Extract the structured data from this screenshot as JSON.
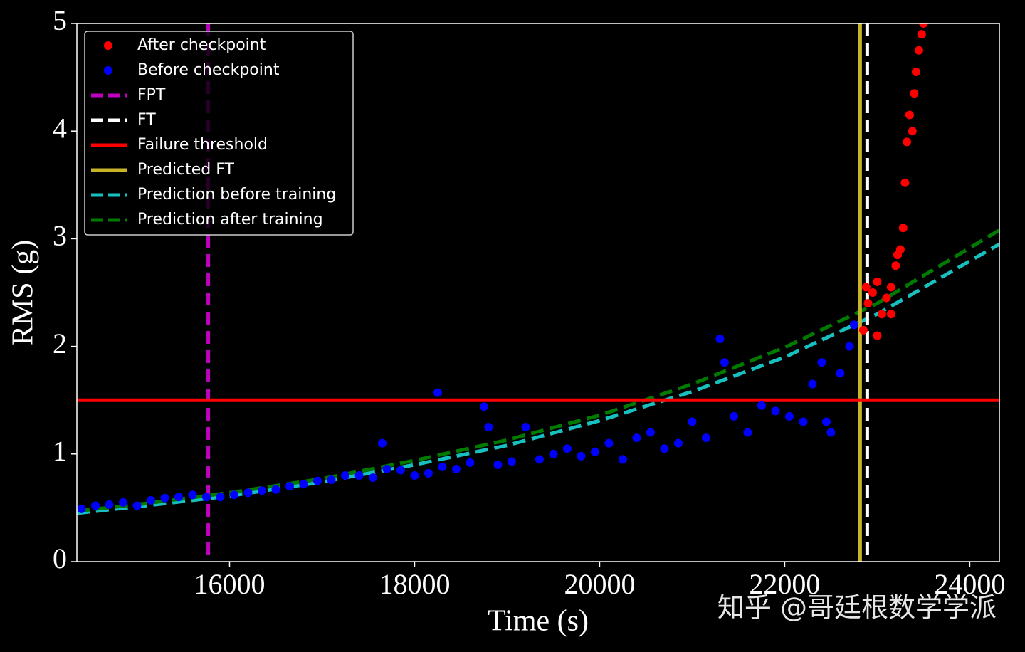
{
  "chart_data": {
    "type": "scatter",
    "xlabel": "Time (s)",
    "ylabel": "RMS (g)",
    "watermark": "知乎 @哥廷根数学学派",
    "xlim": [
      14350,
      24320
    ],
    "ylim": [
      0,
      5
    ],
    "xticks": [
      16000,
      18000,
      20000,
      22000,
      24000
    ],
    "yticks": [
      0,
      1,
      2,
      3,
      4,
      5
    ],
    "legend": "upper left",
    "series": [
      {
        "name": "After checkpoint",
        "kind": "scatter",
        "color": "#ff0000",
        "x": [
          22850,
          22880,
          22900,
          22950,
          23000,
          23050,
          23100,
          23150,
          23200,
          23220,
          23250,
          23280,
          23300,
          23320,
          23350,
          23380,
          23400,
          23420,
          23450,
          23480,
          23500,
          23000,
          23150
        ],
        "values": [
          2.15,
          2.55,
          2.4,
          2.5,
          2.6,
          2.3,
          2.45,
          2.55,
          2.75,
          2.85,
          2.9,
          3.1,
          3.52,
          3.9,
          4.15,
          4.0,
          4.35,
          4.55,
          4.75,
          4.9,
          5.0,
          2.1,
          2.3
        ]
      },
      {
        "name": "Before checkpoint",
        "kind": "scatter",
        "color": "#0000ff",
        "x": [
          14400,
          14550,
          14700,
          14850,
          15000,
          15150,
          15300,
          15450,
          15600,
          15750,
          15900,
          16050,
          16200,
          16350,
          16500,
          16650,
          16800,
          16950,
          17100,
          17250,
          17400,
          17550,
          17650,
          17700,
          17850,
          18000,
          18150,
          18250,
          18300,
          18450,
          18600,
          18750,
          18800,
          18900,
          19050,
          19200,
          19350,
          19500,
          19650,
          19800,
          19950,
          20100,
          20250,
          20400,
          20550,
          20700,
          20850,
          21000,
          21150,
          21300,
          21350,
          21450,
          21600,
          21750,
          21900,
          22050,
          22200,
          22300,
          22400,
          22450,
          22500,
          22600,
          22700,
          22750
        ],
        "values": [
          0.49,
          0.52,
          0.53,
          0.55,
          0.52,
          0.57,
          0.59,
          0.6,
          0.62,
          0.6,
          0.6,
          0.62,
          0.64,
          0.66,
          0.67,
          0.7,
          0.72,
          0.75,
          0.76,
          0.8,
          0.8,
          0.78,
          1.1,
          0.86,
          0.85,
          0.8,
          0.82,
          1.57,
          0.88,
          0.86,
          0.92,
          1.44,
          1.25,
          0.9,
          0.93,
          1.25,
          0.95,
          1.0,
          1.05,
          0.98,
          1.02,
          1.1,
          0.95,
          1.15,
          1.2,
          1.05,
          1.1,
          1.3,
          1.15,
          2.07,
          1.85,
          1.35,
          1.2,
          1.45,
          1.4,
          1.35,
          1.3,
          1.65,
          1.85,
          1.3,
          1.2,
          1.75,
          2.0,
          2.2
        ]
      },
      {
        "name": "FPT",
        "kind": "vline",
        "color": "#c000c0",
        "dash": true,
        "x": 15770
      },
      {
        "name": "FT",
        "kind": "vline",
        "color": "#ffffff",
        "dash": true,
        "x": 22892
      },
      {
        "name": "Failure threshold",
        "kind": "hline",
        "color": "#ff0000",
        "dash": false,
        "value": 1.5
      },
      {
        "name": "Predicted FT",
        "kind": "vline",
        "color": "#c8b428",
        "dash": false,
        "x": 22815
      },
      {
        "name": "Prediction before training",
        "kind": "line",
        "color": "#17bfbf",
        "dash": true,
        "x": [
          14350,
          15000,
          16000,
          17000,
          18000,
          19000,
          20000,
          21000,
          22000,
          23000,
          24320
        ],
        "values": [
          0.45,
          0.51,
          0.61,
          0.74,
          0.9,
          1.08,
          1.31,
          1.58,
          1.9,
          2.3,
          2.95
        ]
      },
      {
        "name": "Prediction after training",
        "kind": "line",
        "color": "#007a00",
        "dash": true,
        "x": [
          14350,
          15000,
          16000,
          17000,
          18000,
          19000,
          20000,
          21000,
          22000,
          23000,
          24320
        ],
        "values": [
          0.47,
          0.53,
          0.64,
          0.77,
          0.94,
          1.13,
          1.36,
          1.65,
          1.99,
          2.4,
          3.08
        ]
      }
    ]
  }
}
